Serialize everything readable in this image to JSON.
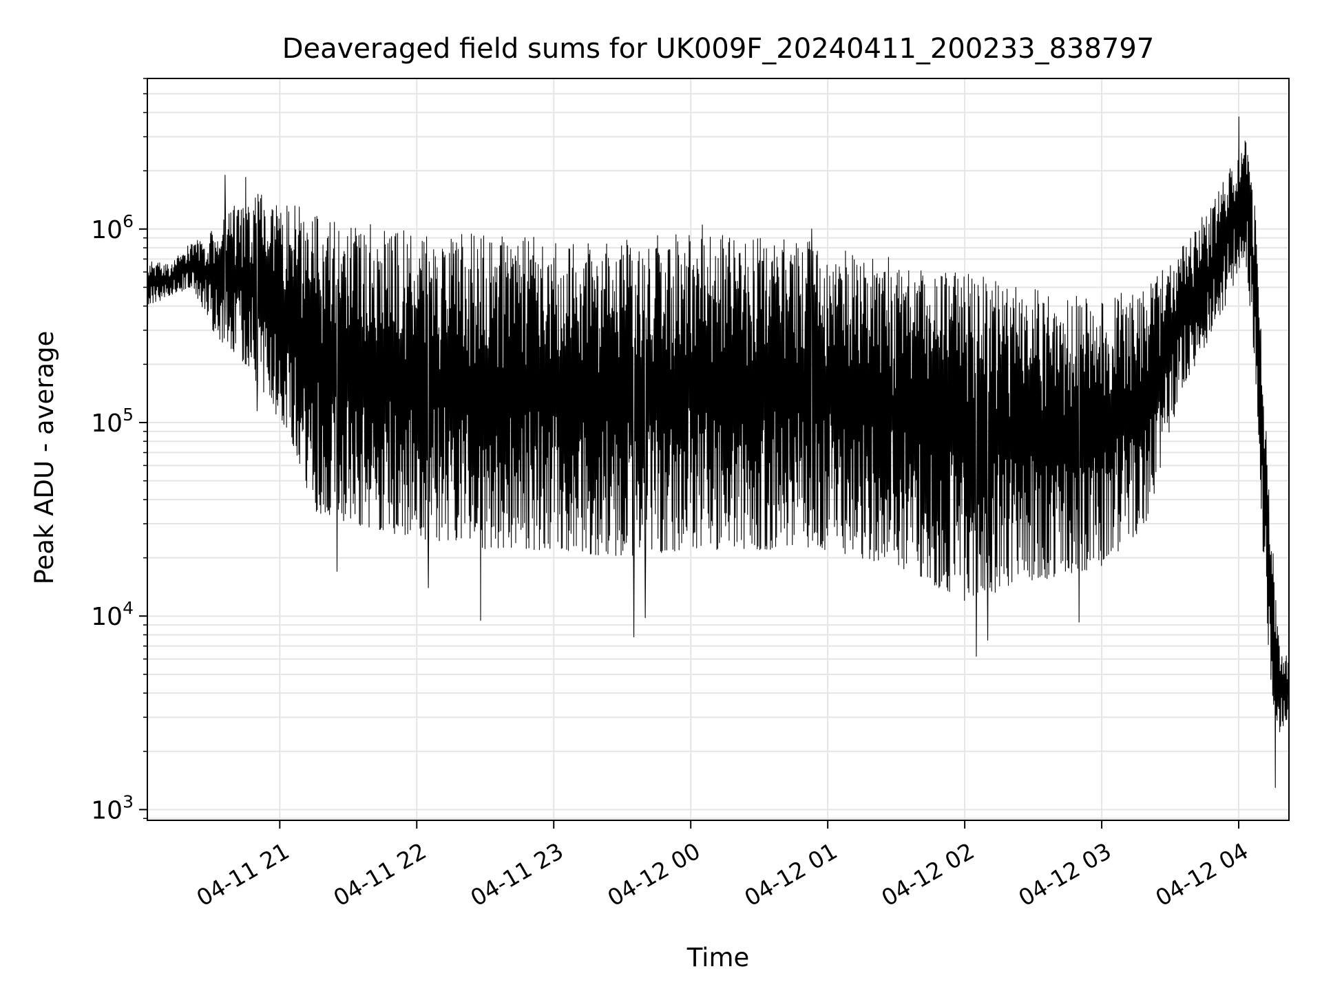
{
  "chart_data": {
    "type": "line",
    "title": "Deaveraged field sums for UK009F_20240411_200233_838797",
    "xlabel": "Time",
    "ylabel": "Peak ADU - average",
    "yscale": "log",
    "grid": true,
    "legend": "none",
    "xlim": [
      "2024-04-11 20:02",
      "2024-04-12 04:22"
    ],
    "ylim": [
      880,
      6000000
    ],
    "x_ticks": [
      {
        "value": "2024-04-11 21:00",
        "label": "04-11 21"
      },
      {
        "value": "2024-04-11 22:00",
        "label": "04-11 22"
      },
      {
        "value": "2024-04-11 23:00",
        "label": "04-11 23"
      },
      {
        "value": "2024-04-12 00:00",
        "label": "04-12 00"
      },
      {
        "value": "2024-04-12 01:00",
        "label": "04-12 01"
      },
      {
        "value": "2024-04-12 02:00",
        "label": "04-12 02"
      },
      {
        "value": "2024-04-12 03:00",
        "label": "04-12 03"
      },
      {
        "value": "2024-04-12 04:00",
        "label": "04-12 04"
      }
    ],
    "y_ticks": [
      {
        "value": 1000,
        "base": "10",
        "exp": "3"
      },
      {
        "value": 10000,
        "base": "10",
        "exp": "4"
      },
      {
        "value": 100000,
        "base": "10",
        "exp": "5"
      },
      {
        "value": 1000000,
        "base": "10",
        "exp": "6"
      }
    ],
    "line_color": "#000000",
    "grid_color": "#e5e5e5",
    "series": [
      {
        "envelope": {
          "x": [
            "2024-04-11 20:02",
            "2024-04-11 20:12",
            "2024-04-11 20:22",
            "2024-04-11 20:30",
            "2024-04-11 20:36",
            "2024-04-11 20:45",
            "2024-04-11 20:55",
            "2024-04-11 21:05",
            "2024-04-11 21:15",
            "2024-04-11 21:30",
            "2024-04-11 22:00",
            "2024-04-11 22:30",
            "2024-04-11 23:00",
            "2024-04-11 23:30",
            "2024-04-12 00:00",
            "2024-04-12 00:30",
            "2024-04-12 01:00",
            "2024-04-12 01:30",
            "2024-04-12 02:00",
            "2024-04-12 02:30",
            "2024-04-12 03:00",
            "2024-04-12 03:20",
            "2024-04-12 03:35",
            "2024-04-12 03:50",
            "2024-04-12 04:00",
            "2024-04-12 04:03",
            "2024-04-12 04:07",
            "2024-04-12 04:10",
            "2024-04-12 04:14",
            "2024-04-12 04:18",
            "2024-04-12 04:22"
          ],
          "high": [
            700000,
            650000,
            900000,
            1000000,
            1200000,
            1500000,
            1600000,
            1400000,
            1200000,
            1100000,
            1000000,
            950000,
            900000,
            900000,
            950000,
            900000,
            850000,
            700000,
            600000,
            500000,
            450000,
            500000,
            800000,
            1500000,
            2500000,
            3000000,
            1500000,
            300000,
            30000,
            8000,
            6000
          ],
          "low": [
            400000,
            450000,
            500000,
            300000,
            250000,
            200000,
            130000,
            80000,
            35000,
            30000,
            25000,
            22000,
            22000,
            20000,
            22000,
            22000,
            22000,
            18000,
            12000,
            15000,
            18000,
            30000,
            150000,
            300000,
            600000,
            700000,
            200000,
            30000,
            4000,
            2500,
            3000
          ]
        },
        "extremes": [
          {
            "x": "2024-04-11 20:36",
            "y": 1900000
          },
          {
            "x": "2024-04-11 20:45",
            "y": 1850000
          },
          {
            "x": "2024-04-11 20:50",
            "y": 115000
          },
          {
            "x": "2024-04-11 21:25",
            "y": 17000
          },
          {
            "x": "2024-04-11 22:05",
            "y": 14000
          },
          {
            "x": "2024-04-11 22:28",
            "y": 9500
          },
          {
            "x": "2024-04-11 23:35",
            "y": 7800
          },
          {
            "x": "2024-04-11 23:40",
            "y": 9800
          },
          {
            "x": "2024-04-12 00:05",
            "y": 1050000
          },
          {
            "x": "2024-04-12 00:53",
            "y": 1000000
          },
          {
            "x": "2024-04-12 02:05",
            "y": 6200
          },
          {
            "x": "2024-04-12 02:10",
            "y": 7500
          },
          {
            "x": "2024-04-12 02:50",
            "y": 9300
          },
          {
            "x": "2024-04-12 04:00",
            "y": 3800000
          },
          {
            "x": "2024-04-12 04:16",
            "y": 1300
          }
        ]
      }
    ]
  }
}
